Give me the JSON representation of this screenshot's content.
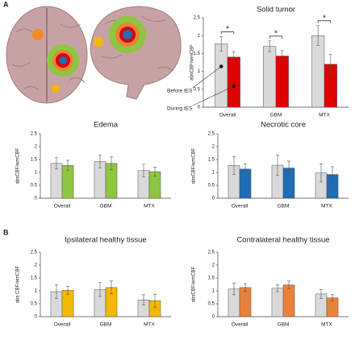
{
  "panel_labels": [
    "A",
    "B"
  ],
  "chart_data": [
    {
      "type": "bar",
      "title": "Solid tumor",
      "y_label": "absCBF/wmCBF",
      "categories": [
        "Overall",
        "GBM",
        "MTX"
      ],
      "series": [
        {
          "name": "Before tES",
          "color": "#d9d9d9",
          "values": [
            1.77,
            1.7,
            2.0
          ],
          "errors": [
            0.2,
            0.15,
            0.28
          ]
        },
        {
          "name": "During tES",
          "color": "#e00000",
          "values": [
            1.4,
            1.43,
            1.2
          ],
          "errors": [
            0.15,
            0.15,
            0.27
          ]
        }
      ],
      "significance": [
        "*",
        "*",
        "*"
      ],
      "ylim": [
        0,
        2.5
      ],
      "yticks": [
        0,
        0.5,
        1,
        1.5,
        2,
        2.5
      ]
    },
    {
      "type": "bar",
      "title": "Edema",
      "y_label": "absCBF/wmCBF",
      "categories": [
        "Overall",
        "GBM",
        "MTX"
      ],
      "series": [
        {
          "color": "#d9d9d9",
          "values": [
            1.35,
            1.42,
            1.07
          ],
          "errors": [
            0.22,
            0.25,
            0.25
          ]
        },
        {
          "color": "#8dc63f",
          "values": [
            1.27,
            1.35,
            1.03
          ],
          "errors": [
            0.2,
            0.25,
            0.17
          ]
        }
      ],
      "ylim": [
        0,
        2.5
      ],
      "yticks": [
        0,
        0.5,
        1,
        1.5,
        2,
        2.5
      ]
    },
    {
      "type": "bar",
      "title": "Necrotic core",
      "y_label": "absCBF/wmCBF",
      "categories": [
        "Overall",
        "GBM",
        "MTX"
      ],
      "series": [
        {
          "color": "#d9d9d9",
          "values": [
            1.27,
            1.28,
            0.98
          ],
          "errors": [
            0.35,
            0.4,
            0.35
          ]
        },
        {
          "color": "#1f6db5",
          "values": [
            1.13,
            1.17,
            0.92
          ],
          "errors": [
            0.2,
            0.27,
            0.3
          ]
        }
      ],
      "ylim": [
        0,
        2.5
      ],
      "yticks": [
        0,
        0.5,
        1,
        1.5,
        2,
        2.5
      ]
    },
    {
      "type": "bar",
      "title": "Ipsilateral healthy tissue",
      "y_label": "abs CBF/wmCBF",
      "categories": [
        "Overall",
        "GBM",
        "MTX"
      ],
      "series": [
        {
          "color": "#d9d9d9",
          "values": [
            0.97,
            1.05,
            0.65
          ],
          "errors": [
            0.27,
            0.27,
            0.2
          ]
        },
        {
          "color": "#f5b800",
          "values": [
            1.02,
            1.13,
            0.62
          ],
          "errors": [
            0.15,
            0.25,
            0.25
          ]
        }
      ],
      "ylim": [
        0,
        2.5
      ],
      "yticks": [
        0,
        0.5,
        1,
        1.5,
        2,
        2.5
      ]
    },
    {
      "type": "bar",
      "title": "Contralateral healthy tissue",
      "y_label": "absCBF/wmCBF",
      "categories": [
        "Overall",
        "GBM",
        "MTX"
      ],
      "series": [
        {
          "color": "#d9d9d9",
          "values": [
            1.07,
            1.1,
            0.88
          ],
          "errors": [
            0.22,
            0.13,
            0.17
          ]
        },
        {
          "color": "#e8823a",
          "values": [
            1.13,
            1.23,
            0.73
          ],
          "errors": [
            0.15,
            0.15,
            0.12
          ]
        }
      ],
      "ylim": [
        0,
        2.5
      ],
      "yticks": [
        0,
        0.5,
        1,
        1.5,
        2,
        2.5
      ]
    }
  ]
}
